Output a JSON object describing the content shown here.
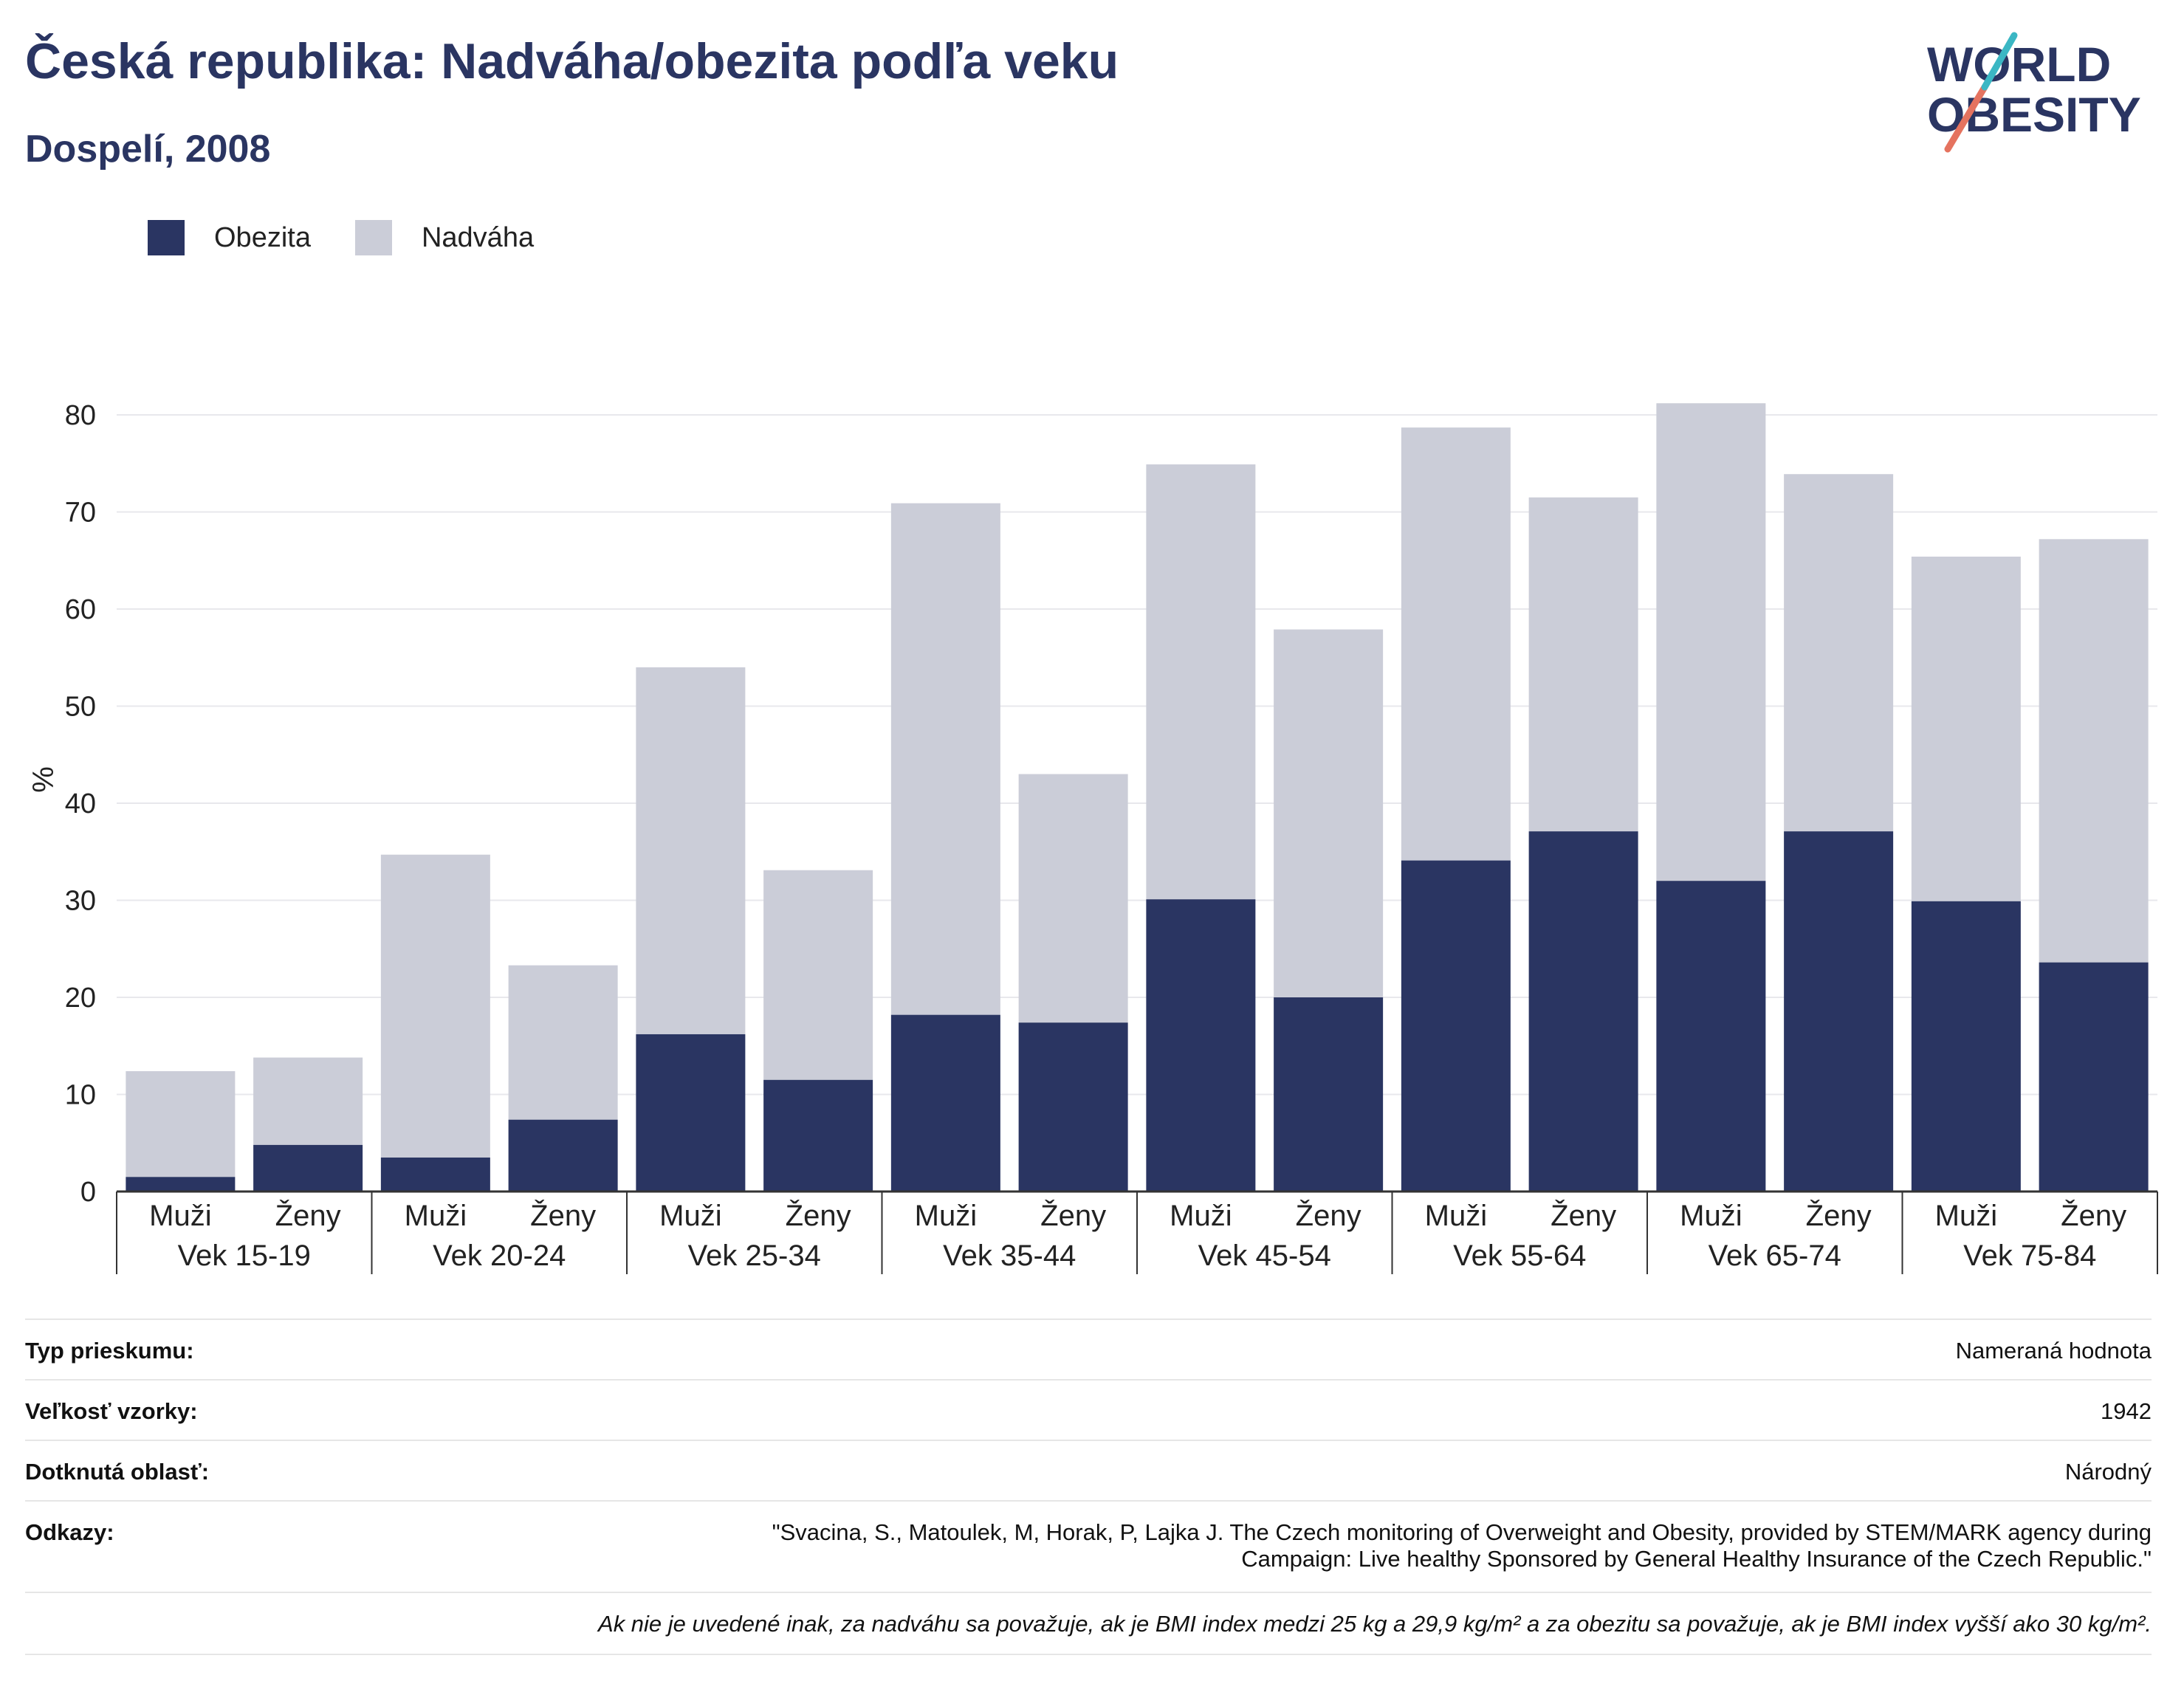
{
  "header": {
    "title": "Česká republika: Nadváha/obezita podľa veku",
    "subtitle": "Dospelí, 2008"
  },
  "logo": {
    "line1": "WORLD",
    "line2": "OBESITY"
  },
  "colors": {
    "obezita": "#2a3562",
    "nadvaha": "#cbcdd8",
    "grid": "#e8e8ec",
    "title": "#2a3562"
  },
  "legend": {
    "obezita": "Obezita",
    "nadvaha": "Nadváha"
  },
  "chart_data": {
    "type": "bar",
    "stacked": true,
    "ylabel": "%",
    "ylim": [
      0,
      80
    ],
    "yticks": [
      0,
      10,
      20,
      30,
      40,
      50,
      60,
      70,
      80
    ],
    "grid": true,
    "legend_position": "top-left",
    "groups": [
      "Vek 15-19",
      "Vek 20-24",
      "Vek 25-34",
      "Vek 35-44",
      "Vek 45-54",
      "Vek 55-64",
      "Vek 65-74",
      "Vek 75-84"
    ],
    "subcategories": [
      "Muži",
      "Ženy"
    ],
    "series": [
      {
        "name": "Obezita",
        "values": [
          1.5,
          4.8,
          3.5,
          7.4,
          16.2,
          11.5,
          18.2,
          17.4,
          30.1,
          20.0,
          34.1,
          37.1,
          32.0,
          37.1,
          29.9,
          23.6
        ]
      },
      {
        "name": "Nadváha",
        "values": [
          10.9,
          9.0,
          31.2,
          15.9,
          37.8,
          21.6,
          52.7,
          25.6,
          44.8,
          37.9,
          44.6,
          34.4,
          49.2,
          36.8,
          35.5,
          43.6
        ]
      }
    ]
  },
  "info": {
    "survey_type_label": "Typ prieskumu:",
    "survey_type_value": "Nameraná hodnota",
    "sample_size_label": "Veľkosť vzorky:",
    "sample_size_value": "1942",
    "area_label": "Dotknutá oblasť:",
    "area_value": "Národný",
    "references_label": "Odkazy:",
    "references_value_1": "\"Svacina, S., Matoulek, M, Horak, P, Lajka J. The Czech monitoring of Overweight and Obesity, provided by STEM/MARK agency during",
    "references_value_2": "Campaign: Live healthy Sponsored by General Healthy Insurance of the Czech Republic.\"",
    "note": "Ak nie je uvedené inak, za nadváhu sa považuje, ak je BMI index medzi 25 kg a 29,9 kg/m² a za obezitu sa považuje, ak je BMI index vyšší ako 30 kg/m²."
  }
}
